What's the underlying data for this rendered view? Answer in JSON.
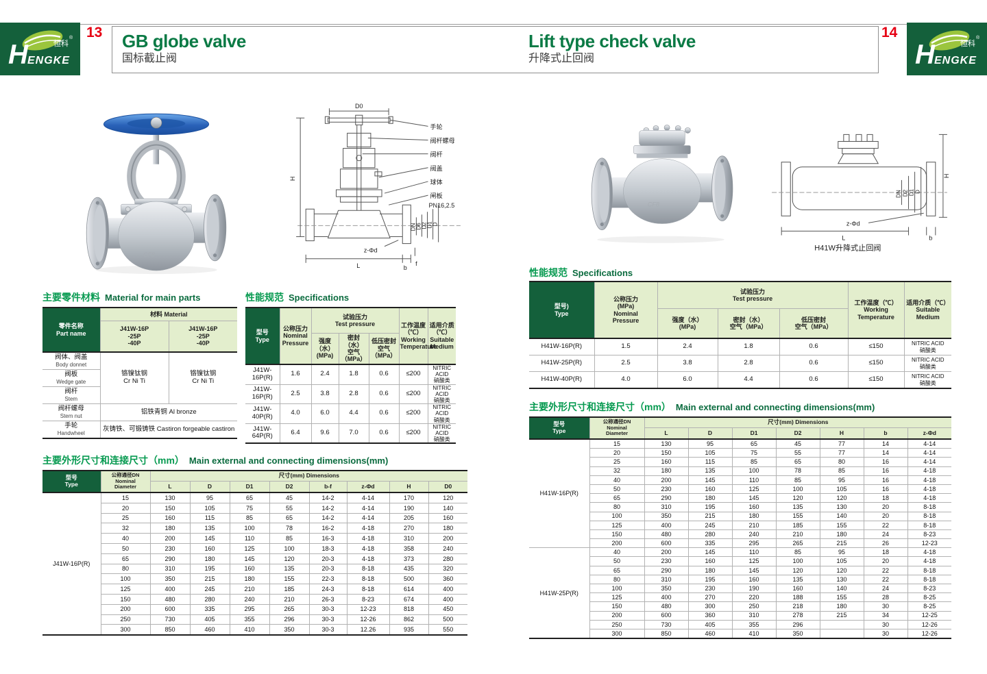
{
  "brand": {
    "name": "HENGKE",
    "name_cn": "恒科",
    "reg": "®"
  },
  "left_page": {
    "page_number": "13",
    "title": "GB globe valve",
    "subtitle": "国标截止阀",
    "drawing": {
      "d0": "D0",
      "h": "H",
      "l": "L",
      "b": "b",
      "f": "f",
      "zphid": "z-Φd",
      "pn": "PN16,2.5",
      "labels": [
        "手轮",
        "阀杆螺母",
        "阀杆",
        "阀盖",
        "球体",
        "闸板"
      ],
      "flange": [
        "DN",
        "D6",
        "D2",
        "D1",
        "D"
      ]
    },
    "materials": {
      "heading_cn": "主要零件材料",
      "heading_en": "Material for main parts",
      "part_header": "零件名称\nPart name",
      "material_header": "材料 Material",
      "material_col1": "J41W-16P\n-25P\n-40P",
      "material_col2": "J41W-16P\n-25P\n-40P",
      "cr_ni_ti": "铬镍钛钢\nCr Ni Ti",
      "stem_nut_material": "铝铁青铜 Al bronze",
      "handwheel_material": "灰铸铁、可锻铸铁 Castiron forgeable castiron",
      "parts": [
        {
          "cn": "阀体、阀盖",
          "en": "Body donnet"
        },
        {
          "cn": "阀板",
          "en": "Wedge gate"
        },
        {
          "cn": "阀杆",
          "en": "Stem"
        },
        {
          "cn": "阀杆螺母",
          "en": "Stem nut"
        },
        {
          "cn": "手轮",
          "en": "Handwheel"
        }
      ]
    },
    "specs": {
      "heading_cn": "性能规范",
      "heading_en": "Specifications",
      "header": {
        "type": "型号\nType",
        "nominal": "公称压力\nNominal\nPressure",
        "test": "试验压力\nTest pressure",
        "strength": "强度（水）\n(MPa)",
        "seal": "密封（水）\n空气（MPa）",
        "low": "低压密封\n空气（MPa）",
        "temp": "工作温度\n（℃）\nWorking\nTemperature",
        "medium": "适用介质\n（℃）\nSuitable\nMedium"
      },
      "groups": [
        {
          "rows": [
            [
              "J41W-16P(R)",
              "1.6",
              "2.4",
              "1.8",
              "0.6",
              "≤200",
              "NITRIC ACID\n硝酸类"
            ],
            [
              "J41W-16P(R)",
              "2.5",
              "3.8",
              "2.8",
              "0.6",
              "≤200",
              "NITRIC ACID\n硝酸类"
            ],
            [
              "J41W-40P(R)",
              "4.0",
              "6.0",
              "4.4",
              "0.6",
              "≤200",
              "NITRIC ACID\n硝酸类"
            ],
            [
              "J41W-64P(R)",
              "6.4",
              "9.6",
              "7.0",
              "0.6",
              "≤200",
              "NITRIC ACID\n硝酸类"
            ]
          ]
        }
      ]
    },
    "dimensions": {
      "heading_cn": "主要外形尺寸和连接尺寸（mm）",
      "heading_en": "Main external and connecting dimensions(mm)",
      "header": {
        "type": "型号\nType",
        "dn": "公称通径DN\nNominal\nDiameter",
        "dims_label": "尺寸(mm) Dimensions",
        "cols": [
          "L",
          "D",
          "D1",
          "D2",
          "b-f",
          "z-Φd",
          "H",
          "D0"
        ]
      },
      "groups": [
        {
          "type": "J41W-16P(R)",
          "rows": [
            [
              "15",
              "130",
              "95",
              "65",
              "45",
              "14-2",
              "4-14",
              "170",
              "120"
            ],
            [
              "20",
              "150",
              "105",
              "75",
              "55",
              "14-2",
              "4-14",
              "190",
              "140"
            ],
            [
              "25",
              "160",
              "115",
              "85",
              "65",
              "14-2",
              "4-14",
              "205",
              "160"
            ],
            [
              "32",
              "180",
              "135",
              "100",
              "78",
              "16-2",
              "4-18",
              "270",
              "180"
            ],
            [
              "40",
              "200",
              "145",
              "110",
              "85",
              "16-3",
              "4-18",
              "310",
              "200"
            ],
            [
              "50",
              "230",
              "160",
              "125",
              "100",
              "18-3",
              "4-18",
              "358",
              "240"
            ],
            [
              "65",
              "290",
              "180",
              "145",
              "120",
              "20-3",
              "4-18",
              "373",
              "280"
            ],
            [
              "80",
              "310",
              "195",
              "160",
              "135",
              "20-3",
              "8-18",
              "435",
              "320"
            ],
            [
              "100",
              "350",
              "215",
              "180",
              "155",
              "22-3",
              "8-18",
              "500",
              "360"
            ],
            [
              "125",
              "400",
              "245",
              "210",
              "185",
              "24-3",
              "8-18",
              "614",
              "400"
            ],
            [
              "150",
              "480",
              "280",
              "240",
              "210",
              "26-3",
              "8-23",
              "674",
              "400"
            ],
            [
              "200",
              "600",
              "335",
              "295",
              "265",
              "30-3",
              "12-23",
              "818",
              "450"
            ],
            [
              "250",
              "730",
              "405",
              "355",
              "296",
              "30-3",
              "12-26",
              "862",
              "500"
            ],
            [
              "300",
              "850",
              "460",
              "410",
              "350",
              "30-3",
              "12.26",
              "935",
              "550"
            ]
          ]
        }
      ]
    }
  },
  "right_page": {
    "page_number": "14",
    "title": "Lift type check valve",
    "subtitle": "升降式止回阀",
    "drawing": {
      "h": "H",
      "l": "L",
      "b": "b",
      "zphid": "z-Φd",
      "flange": [
        "DN",
        "D2",
        "D1",
        "D"
      ],
      "caption": "H41W升降式止回阀"
    },
    "specs": {
      "heading_cn": "性能规范",
      "heading_en": "Specifications",
      "header": {
        "type": "型号)\nType",
        "nominal": "公称压力\n(MPa)\nNominal\nPressure",
        "test": "试验压力\nTest pressure",
        "strength": "强度（水）\n(MPa)",
        "seal": "密封（水）\n空气（MPa）",
        "low": "低压密封\n空气（MPa）",
        "temp": "工作温度（℃）\nWorking\nTemperature",
        "medium": "适用介质（℃）\nSuitable\nMedium"
      },
      "groups": [
        {
          "rows": [
            [
              "H41W-16P(R)",
              "1.5",
              "2.4",
              "1.8",
              "0.6",
              "≤150",
              "NITRIC ACID\n硝酸类"
            ],
            [
              "H41W-25P(R)",
              "2.5",
              "3.8",
              "2.8",
              "0.6",
              "≤150",
              "NITRIC ACID\n硝酸类"
            ],
            [
              "H41W-40P(R)",
              "4.0",
              "6.0",
              "4.4",
              "0.6",
              "≤150",
              "NITRIC ACID\n硝酸类"
            ]
          ]
        }
      ]
    },
    "dimensions": {
      "heading_cn": "主要外形尺寸和连接尺寸（mm）",
      "heading_en": "Main external and connecting dimensions(mm)",
      "header": {
        "type": "型号\nType",
        "dn": "公称通径DN\nNominal\nDiameter",
        "dims_label": "尺寸(mm) Dimensions",
        "cols": [
          "L",
          "D",
          "D1",
          "D2",
          "H",
          "b",
          "z-Φd"
        ]
      },
      "groups": [
        {
          "type": "H41W-16P(R)",
          "rows": [
            [
              "15",
              "130",
              "95",
              "65",
              "45",
              "77",
              "14",
              "4-14"
            ],
            [
              "20",
              "150",
              "105",
              "75",
              "55",
              "77",
              "14",
              "4-14"
            ],
            [
              "25",
              "160",
              "115",
              "85",
              "65",
              "80",
              "16",
              "4-14"
            ],
            [
              "32",
              "180",
              "135",
              "100",
              "78",
              "85",
              "16",
              "4-18"
            ],
            [
              "40",
              "200",
              "145",
              "110",
              "85",
              "95",
              "16",
              "4-18"
            ],
            [
              "50",
              "230",
              "160",
              "125",
              "100",
              "105",
              "16",
              "4-18"
            ],
            [
              "65",
              "290",
              "180",
              "145",
              "120",
              "120",
              "18",
              "4-18"
            ],
            [
              "80",
              "310",
              "195",
              "160",
              "135",
              "130",
              "20",
              "8-18"
            ],
            [
              "100",
              "350",
              "215",
              "180",
              "155",
              "140",
              "20",
              "8-18"
            ],
            [
              "125",
              "400",
              "245",
              "210",
              "185",
              "155",
              "22",
              "8-18"
            ],
            [
              "150",
              "480",
              "280",
              "240",
              "210",
              "180",
              "24",
              "8-23"
            ],
            [
              "200",
              "600",
              "335",
              "295",
              "265",
              "215",
              "26",
              "12-23"
            ]
          ]
        },
        {
          "type": "H41W-25P(R)",
          "rows": [
            [
              "40",
              "200",
              "145",
              "110",
              "85",
              "95",
              "18",
              "4-18"
            ],
            [
              "50",
              "230",
              "160",
              "125",
              "100",
              "105",
              "20",
              "4-18"
            ],
            [
              "65",
              "290",
              "180",
              "145",
              "120",
              "120",
              "22",
              "8-18"
            ],
            [
              "80",
              "310",
              "195",
              "160",
              "135",
              "130",
              "22",
              "8-18"
            ],
            [
              "100",
              "350",
              "230",
              "190",
              "160",
              "140",
              "24",
              "8-23"
            ],
            [
              "125",
              "400",
              "270",
              "220",
              "188",
              "155",
              "28",
              "8-25"
            ],
            [
              "150",
              "480",
              "300",
              "250",
              "218",
              "180",
              "30",
              "8-25"
            ],
            [
              "200",
              "600",
              "360",
              "310",
              "278",
              "215",
              "34",
              "12-25"
            ],
            [
              "250",
              "730",
              "405",
              "355",
              "296",
              "",
              "30",
              "12-26"
            ],
            [
              "300",
              "850",
              "460",
              "410",
              "350",
              "",
              "30",
              "12-26"
            ]
          ]
        }
      ]
    }
  }
}
